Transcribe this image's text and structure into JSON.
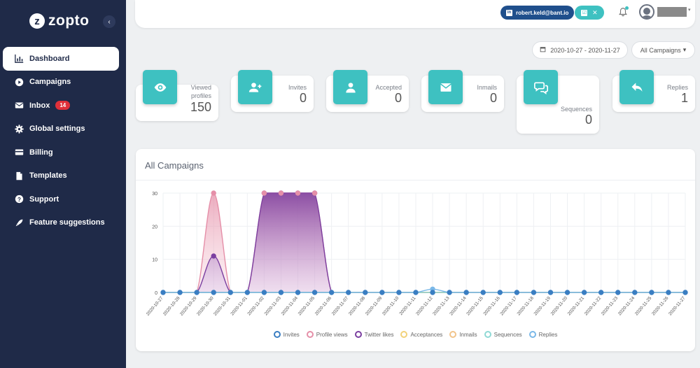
{
  "app": {
    "logo_text": "zopto",
    "logo_mark": "z"
  },
  "sidebar": {
    "collapse_icon": "chevron-left-icon",
    "items": [
      {
        "label": "Dashboard",
        "icon": "bar-chart-icon",
        "active": true
      },
      {
        "label": "Campaigns",
        "icon": "play-circle-icon"
      },
      {
        "label": "Inbox",
        "icon": "envelope-icon",
        "badge": "14"
      },
      {
        "label": "Global settings",
        "icon": "gear-icon"
      },
      {
        "label": "Billing",
        "icon": "credit-card-icon"
      },
      {
        "label": "Templates",
        "icon": "file-icon"
      },
      {
        "label": "Support",
        "icon": "question-circle-icon"
      },
      {
        "label": "Feature suggestions",
        "icon": "rocket-icon"
      }
    ]
  },
  "header": {
    "account_email": "robert.keld@bant.io",
    "linkedin_icon": "in",
    "status_check": "☑",
    "status_close": "✕"
  },
  "filters": {
    "date_range": "2020-10-27 - 2020-11-27",
    "campaign": "All Campaigns",
    "caret": "▾"
  },
  "stats": [
    {
      "label_lines": [
        "Viewed",
        "profiles"
      ],
      "value": "150",
      "icon": "eye-icon"
    },
    {
      "label_lines": [
        "Invites"
      ],
      "value": "0",
      "icon": "user-plus-icon"
    },
    {
      "label_lines": [
        "Accepted"
      ],
      "value": "0",
      "icon": "user-icon"
    },
    {
      "label_lines": [
        "Inmails"
      ],
      "value": "0",
      "icon": "envelope-icon"
    },
    {
      "label_lines": [
        "Sequences"
      ],
      "value": "0",
      "icon": "comments-icon"
    },
    {
      "label_lines": [
        "Replies"
      ],
      "value": "1",
      "icon": "reply-icon"
    }
  ],
  "chart_title": "All Campaigns",
  "colors": {
    "sidebar": "#1f2a48",
    "accent": "#3ec1c1",
    "badge": "#e0303a"
  },
  "chart_data": {
    "type": "area",
    "title": "All Campaigns",
    "ylim": [
      0,
      30
    ],
    "yticks": [
      0,
      10,
      20,
      30
    ],
    "grid": true,
    "legend_position": "bottom",
    "x": [
      "2020-10-27",
      "2020-10-28",
      "2020-10-29",
      "2020-10-30",
      "2020-10-31",
      "2020-11-01",
      "2020-11-02",
      "2020-11-03",
      "2020-11-04",
      "2020-11-05",
      "2020-11-06",
      "2020-11-07",
      "2020-11-08",
      "2020-11-09",
      "2020-11-10",
      "2020-11-11",
      "2020-11-12",
      "2020-11-13",
      "2020-11-14",
      "2020-11-15",
      "2020-11-16",
      "2020-11-17",
      "2020-11-18",
      "2020-11-19",
      "2020-11-20",
      "2020-11-21",
      "2020-11-22",
      "2020-11-23",
      "2020-11-24",
      "2020-11-25",
      "2020-11-26",
      "2020-11-27"
    ],
    "series": [
      {
        "name": "Invites",
        "color": "#3a7ec2",
        "values": [
          0,
          0,
          0,
          0,
          0,
          0,
          0,
          0,
          0,
          0,
          0,
          0,
          0,
          0,
          0,
          0,
          0,
          0,
          0,
          0,
          0,
          0,
          0,
          0,
          0,
          0,
          0,
          0,
          0,
          0,
          0,
          0
        ]
      },
      {
        "name": "Profile views",
        "color": "#e58fa8",
        "values": [
          0,
          0,
          0,
          30,
          0,
          0,
          30,
          30,
          30,
          30,
          0,
          0,
          0,
          0,
          0,
          0,
          0,
          0,
          0,
          0,
          0,
          0,
          0,
          0,
          0,
          0,
          0,
          0,
          0,
          0,
          0,
          0
        ]
      },
      {
        "name": "Twitter likes",
        "color": "#7b3fa0",
        "values": [
          0,
          0,
          0,
          11,
          0,
          0,
          30,
          30,
          30,
          30,
          0,
          0,
          0,
          0,
          0,
          0,
          0,
          0,
          0,
          0,
          0,
          0,
          0,
          0,
          0,
          0,
          0,
          0,
          0,
          0,
          0,
          0
        ]
      },
      {
        "name": "Acceptances",
        "color": "#f2d27a",
        "values": [
          0,
          0,
          0,
          0,
          0,
          0,
          0,
          0,
          0,
          0,
          0,
          0,
          0,
          0,
          0,
          0,
          0,
          0,
          0,
          0,
          0,
          0,
          0,
          0,
          0,
          0,
          0,
          0,
          0,
          0,
          0,
          0
        ]
      },
      {
        "name": "Inmails",
        "color": "#f2c48a",
        "values": [
          0,
          0,
          0,
          0,
          0,
          0,
          0,
          0,
          0,
          0,
          0,
          0,
          0,
          0,
          0,
          0,
          0,
          0,
          0,
          0,
          0,
          0,
          0,
          0,
          0,
          0,
          0,
          0,
          0,
          0,
          0,
          0
        ]
      },
      {
        "name": "Sequences",
        "color": "#8fd9d5",
        "values": [
          0,
          0,
          0,
          0,
          0,
          0,
          0,
          0,
          0,
          0,
          0,
          0,
          0,
          0,
          0,
          0,
          0,
          0,
          0,
          0,
          0,
          0,
          0,
          0,
          0,
          0,
          0,
          0,
          0,
          0,
          0,
          0
        ]
      },
      {
        "name": "Replies",
        "color": "#7ab8e8",
        "values": [
          0,
          0,
          0,
          0,
          0,
          0,
          0,
          0,
          0,
          0,
          0,
          0,
          0,
          0,
          0,
          0,
          1,
          0,
          0,
          0,
          0,
          0,
          0,
          0,
          0,
          0,
          0,
          0,
          0,
          0,
          0,
          0
        ]
      }
    ]
  }
}
